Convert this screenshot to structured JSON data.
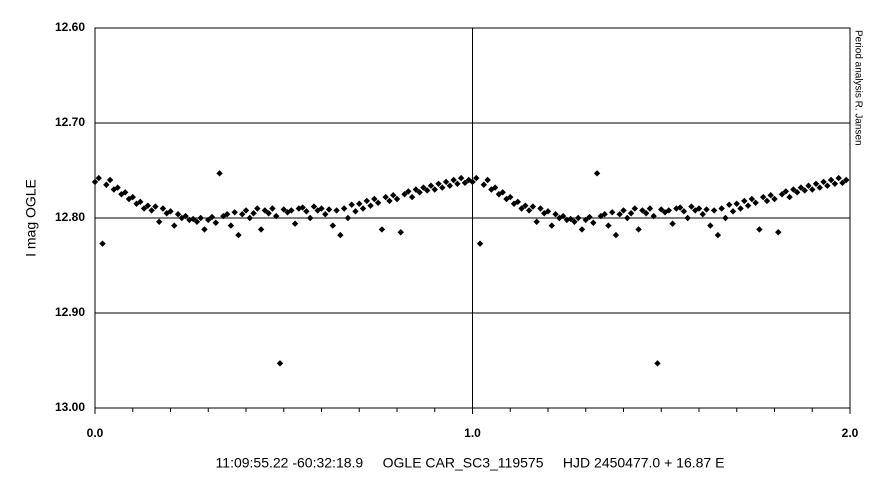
{
  "chart_data": {
    "type": "scatter",
    "ylabel": "I mag OGLE",
    "xlabel": "11:09:55.22 -60:32:18.9     OGLE CAR_SC3_119575     HJD 2450477.0 + 16.87 E",
    "annotation": "Period analysis R. Jansen",
    "color": "#000000",
    "xlim": [
      0,
      2
    ],
    "ylim": [
      12.6,
      13.0
    ],
    "y_inverted": true,
    "grid": true,
    "xticks": [
      {
        "value": 0,
        "label": "0.0"
      },
      {
        "value": 1,
        "label": "1.0"
      },
      {
        "value": 2,
        "label": "2.0"
      }
    ],
    "xminorticks": [
      0.1,
      0.2,
      0.3,
      0.4,
      0.5,
      0.6,
      0.7,
      0.8,
      0.9,
      1.1,
      1.2,
      1.3,
      1.4,
      1.5,
      1.6,
      1.7,
      1.8,
      1.9
    ],
    "yticks": [
      {
        "value": 12.6,
        "label": "12.60"
      },
      {
        "value": 12.7,
        "label": "12.70"
      },
      {
        "value": 12.8,
        "label": "12.80"
      },
      {
        "value": 12.9,
        "label": "12.90"
      },
      {
        "value": 13.0,
        "label": "13.00"
      }
    ],
    "x": [
      0.0,
      0.01,
      0.02,
      0.03,
      0.04,
      0.05,
      0.06,
      0.07,
      0.08,
      0.09,
      0.1,
      0.11,
      0.12,
      0.13,
      0.14,
      0.15,
      0.16,
      0.17,
      0.18,
      0.19,
      0.2,
      0.21,
      0.22,
      0.23,
      0.24,
      0.25,
      0.26,
      0.27,
      0.28,
      0.29,
      0.3,
      0.31,
      0.32,
      0.33,
      0.34,
      0.35,
      0.36,
      0.37,
      0.38,
      0.39,
      0.4,
      0.41,
      0.42,
      0.43,
      0.44,
      0.45,
      0.46,
      0.47,
      0.48,
      0.49,
      0.5,
      0.51,
      0.52,
      0.53,
      0.54,
      0.55,
      0.56,
      0.57,
      0.58,
      0.59,
      0.6,
      0.61,
      0.62,
      0.63,
      0.64,
      0.65,
      0.66,
      0.67,
      0.68,
      0.69,
      0.7,
      0.71,
      0.72,
      0.73,
      0.74,
      0.75,
      0.76,
      0.77,
      0.78,
      0.79,
      0.8,
      0.81,
      0.82,
      0.83,
      0.84,
      0.85,
      0.86,
      0.87,
      0.88,
      0.89,
      0.9,
      0.91,
      0.92,
      0.93,
      0.94,
      0.95,
      0.96,
      0.97,
      0.98,
      0.99,
      1.0,
      1.01,
      1.02,
      1.03,
      1.04,
      1.05,
      1.06,
      1.07,
      1.08,
      1.09,
      1.1,
      1.11,
      1.12,
      1.13,
      1.14,
      1.15,
      1.16,
      1.17,
      1.18,
      1.19,
      1.2,
      1.21,
      1.22,
      1.23,
      1.24,
      1.25,
      1.26,
      1.27,
      1.28,
      1.29,
      1.3,
      1.31,
      1.32,
      1.33,
      1.34,
      1.35,
      1.36,
      1.37,
      1.38,
      1.39,
      1.4,
      1.41,
      1.42,
      1.43,
      1.44,
      1.45,
      1.46,
      1.47,
      1.48,
      1.49,
      1.5,
      1.51,
      1.52,
      1.53,
      1.54,
      1.55,
      1.56,
      1.57,
      1.58,
      1.59,
      1.6,
      1.61,
      1.62,
      1.63,
      1.64,
      1.65,
      1.66,
      1.67,
      1.68,
      1.69,
      1.7,
      1.71,
      1.72,
      1.73,
      1.74,
      1.75,
      1.76,
      1.77,
      1.78,
      1.79,
      1.8,
      1.81,
      1.82,
      1.83,
      1.84,
      1.85,
      1.86,
      1.87,
      1.88,
      1.89,
      1.9,
      1.91,
      1.92,
      1.93,
      1.94,
      1.95,
      1.96,
      1.97,
      1.98,
      1.99
    ],
    "y": [
      12.762,
      12.758,
      12.827,
      12.765,
      12.76,
      12.77,
      12.768,
      12.775,
      12.773,
      12.78,
      12.778,
      12.785,
      12.783,
      12.79,
      12.787,
      12.792,
      12.788,
      12.804,
      12.79,
      12.795,
      12.793,
      12.808,
      12.796,
      12.8,
      12.798,
      12.802,
      12.801,
      12.804,
      12.8,
      12.812,
      12.802,
      12.799,
      12.805,
      12.753,
      12.798,
      12.796,
      12.808,
      12.794,
      12.818,
      12.796,
      12.792,
      12.8,
      12.795,
      12.79,
      12.812,
      12.792,
      12.795,
      12.79,
      12.798,
      12.953,
      12.791,
      12.794,
      12.792,
      12.806,
      12.79,
      12.789,
      12.793,
      12.8,
      12.788,
      12.792,
      12.79,
      12.796,
      12.791,
      12.808,
      12.792,
      12.818,
      12.79,
      12.8,
      12.786,
      12.793,
      12.785,
      12.79,
      12.782,
      12.787,
      12.78,
      12.784,
      12.812,
      12.778,
      12.782,
      12.776,
      12.78,
      12.815,
      12.775,
      12.772,
      12.778,
      12.77,
      12.773,
      12.768,
      12.771,
      12.766,
      12.77,
      12.764,
      12.768,
      12.762,
      12.766,
      12.76,
      12.764,
      12.758,
      12.763,
      12.76,
      12.762,
      12.758,
      12.827,
      12.765,
      12.76,
      12.77,
      12.768,
      12.775,
      12.773,
      12.78,
      12.778,
      12.785,
      12.783,
      12.79,
      12.787,
      12.792,
      12.788,
      12.804,
      12.79,
      12.795,
      12.793,
      12.808,
      12.796,
      12.8,
      12.798,
      12.802,
      12.801,
      12.804,
      12.8,
      12.812,
      12.802,
      12.799,
      12.805,
      12.753,
      12.798,
      12.796,
      12.808,
      12.794,
      12.818,
      12.796,
      12.792,
      12.8,
      12.795,
      12.79,
      12.812,
      12.792,
      12.795,
      12.79,
      12.798,
      12.953,
      12.791,
      12.794,
      12.792,
      12.806,
      12.79,
      12.789,
      12.793,
      12.8,
      12.788,
      12.792,
      12.79,
      12.796,
      12.791,
      12.808,
      12.792,
      12.818,
      12.79,
      12.8,
      12.786,
      12.793,
      12.785,
      12.79,
      12.782,
      12.787,
      12.78,
      12.784,
      12.812,
      12.778,
      12.782,
      12.776,
      12.78,
      12.815,
      12.775,
      12.772,
      12.778,
      12.77,
      12.773,
      12.768,
      12.771,
      12.766,
      12.77,
      12.764,
      12.768,
      12.762,
      12.766,
      12.76,
      12.764,
      12.758,
      12.763,
      12.76
    ]
  }
}
